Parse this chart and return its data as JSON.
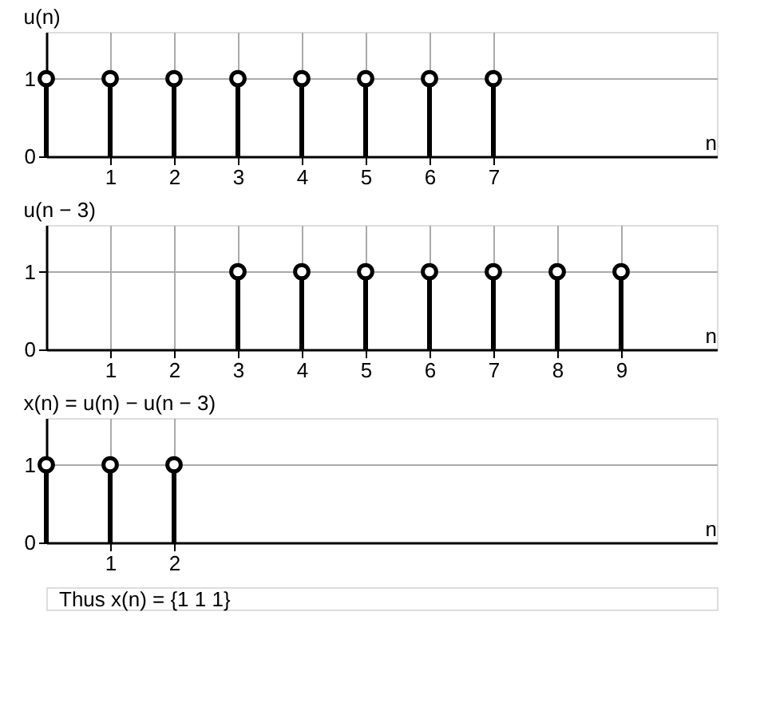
{
  "chart_data": [
    {
      "type": "lollipop",
      "title": "u(n)",
      "xlabel": "n",
      "x": [
        0,
        1,
        2,
        3,
        4,
        5,
        6,
        7
      ],
      "series": [
        {
          "color": "#000000",
          "values": [
            1,
            1,
            1,
            1,
            1,
            1,
            1,
            1
          ]
        }
      ],
      "xlim": [
        0,
        10.5
      ],
      "ylim": [
        0,
        1.6
      ],
      "xticks": [
        1,
        2,
        3,
        4,
        5,
        6,
        7
      ],
      "yticks": [
        0,
        1
      ],
      "marker": "circle",
      "grid": true
    },
    {
      "type": "lollipop",
      "title": "u(n − 3)",
      "xlabel": "n",
      "x": [
        3,
        4,
        5,
        6,
        7,
        8,
        9
      ],
      "series": [
        {
          "color": "#000000",
          "values": [
            1,
            1,
            1,
            1,
            1,
            1,
            1
          ]
        }
      ],
      "xlim": [
        0,
        10.5
      ],
      "ylim": [
        0,
        1.6
      ],
      "xticks": [
        1,
        2,
        3,
        4,
        5,
        6,
        7,
        8,
        9
      ],
      "yticks": [
        0,
        1
      ],
      "marker": "circle",
      "grid": true
    },
    {
      "type": "lollipop",
      "title": "x(n) = u(n) − u(n − 3)",
      "xlabel": "n",
      "x": [
        0,
        1,
        2
      ],
      "series": [
        {
          "color": "#000000",
          "values": [
            1,
            1,
            1
          ]
        }
      ],
      "xlim": [
        0,
        10.5
      ],
      "ylim": [
        0,
        1.6
      ],
      "xticks": [
        1,
        2
      ],
      "yticks": [
        0,
        1
      ],
      "marker": "circle",
      "grid": true,
      "annotations": [
        "Thus x(n) = {1 1 1}"
      ]
    }
  ]
}
